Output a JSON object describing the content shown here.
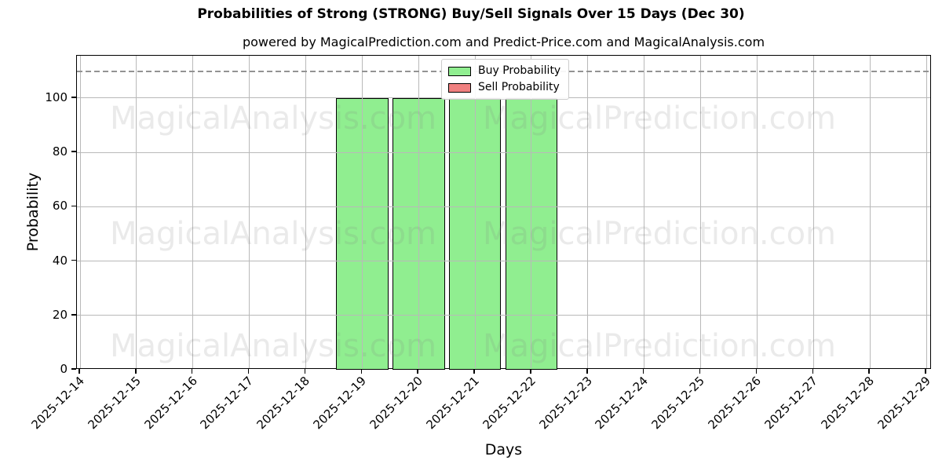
{
  "title": "Probabilities of Strong (STRONG) Buy/Sell Signals Over 15 Days (Dec 30)",
  "subtitle": "powered by MagicalPrediction.com and Predict-Price.com and MagicalAnalysis.com",
  "watermarks": {
    "left": "MagicalAnalysis.com",
    "right": "MagicalPrediction.com"
  },
  "legend": {
    "items": [
      {
        "label": "Buy Probability",
        "color": "#90EE90"
      },
      {
        "label": "Sell Probability",
        "color": "#F08080"
      }
    ]
  },
  "chart_data": {
    "type": "bar",
    "title": "Probabilities of Strong (STRONG) Buy/Sell Signals Over 15 Days (Dec 30)",
    "subtitle": "powered by MagicalPrediction.com and Predict-Price.com and MagicalAnalysis.com",
    "xlabel": "Days",
    "ylabel": "Probability",
    "categories": [
      "2025-12-14",
      "2025-12-15",
      "2025-12-16",
      "2025-12-17",
      "2025-12-18",
      "2025-12-19",
      "2025-12-20",
      "2025-12-21",
      "2025-12-22",
      "2025-12-23",
      "2025-12-24",
      "2025-12-25",
      "2025-12-26",
      "2025-12-27",
      "2025-12-28",
      "2025-12-29"
    ],
    "series": [
      {
        "name": "Buy Probability",
        "color": "#90EE90",
        "values": [
          0,
          0,
          0,
          0,
          0,
          100,
          100,
          100,
          100,
          0,
          0,
          0,
          0,
          0,
          0,
          0
        ]
      },
      {
        "name": "Sell Probability",
        "color": "#F08080",
        "values": [
          0,
          0,
          0,
          0,
          0,
          0,
          0,
          0,
          0,
          0,
          0,
          0,
          0,
          0,
          0,
          0
        ]
      }
    ],
    "yticks": [
      0,
      20,
      40,
      60,
      80,
      100
    ],
    "ylim": [
      0,
      115.6
    ],
    "threshold_line": 110,
    "grid": true,
    "legend_position": "upper center",
    "bar_edge_color": "#000000"
  }
}
